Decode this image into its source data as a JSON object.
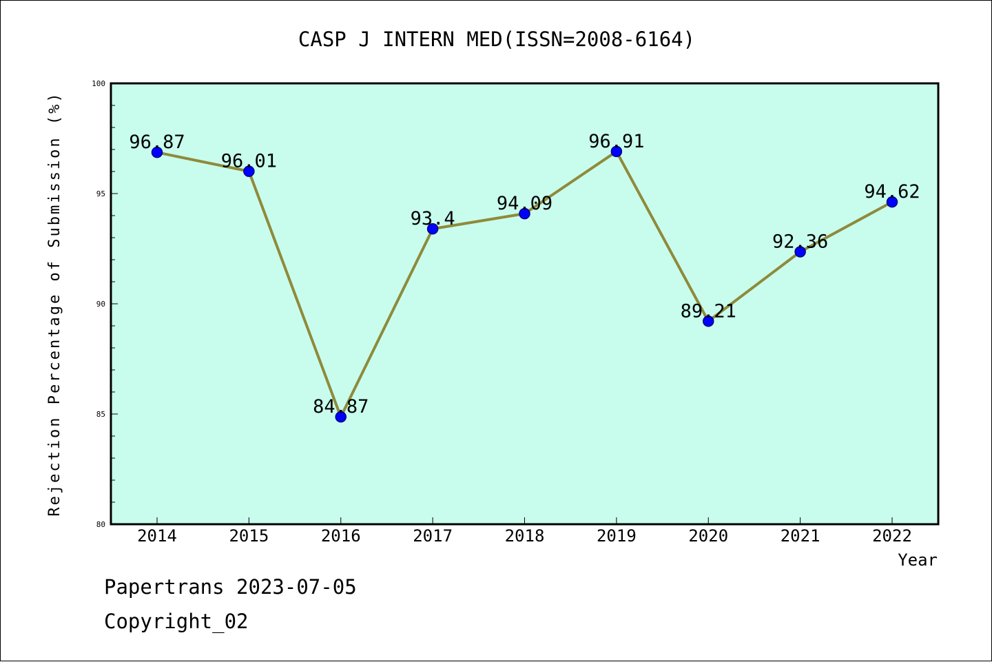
{
  "chart_data": {
    "type": "line",
    "title": "CASP J INTERN MED(ISSN=2008-6164)",
    "xlabel": "Year",
    "ylabel": "Rejection Percentage of Submission (%)",
    "categories": [
      "2014",
      "2015",
      "2016",
      "2017",
      "2018",
      "2019",
      "2020",
      "2021",
      "2022"
    ],
    "values": [
      96.87,
      96.01,
      84.87,
      93.4,
      94.09,
      96.91,
      89.21,
      92.36,
      94.62
    ],
    "value_labels": [
      "96.87",
      "96.01",
      "84.87",
      "93.4",
      "94.09",
      "96.91",
      "89.21",
      "92.36",
      "94.62"
    ],
    "ylim": [
      80,
      100
    ],
    "yticks": [
      "80",
      "85",
      "90",
      "95",
      "100"
    ],
    "grid": false,
    "legend": "none",
    "colors": {
      "plot_background": "#c8fdee",
      "line": "#8f8a3a",
      "marker": "#0000ff",
      "marker_edge": "#000080"
    }
  },
  "footer": {
    "line1": "Papertrans 2023-07-05",
    "line2": "Copyright_02"
  }
}
